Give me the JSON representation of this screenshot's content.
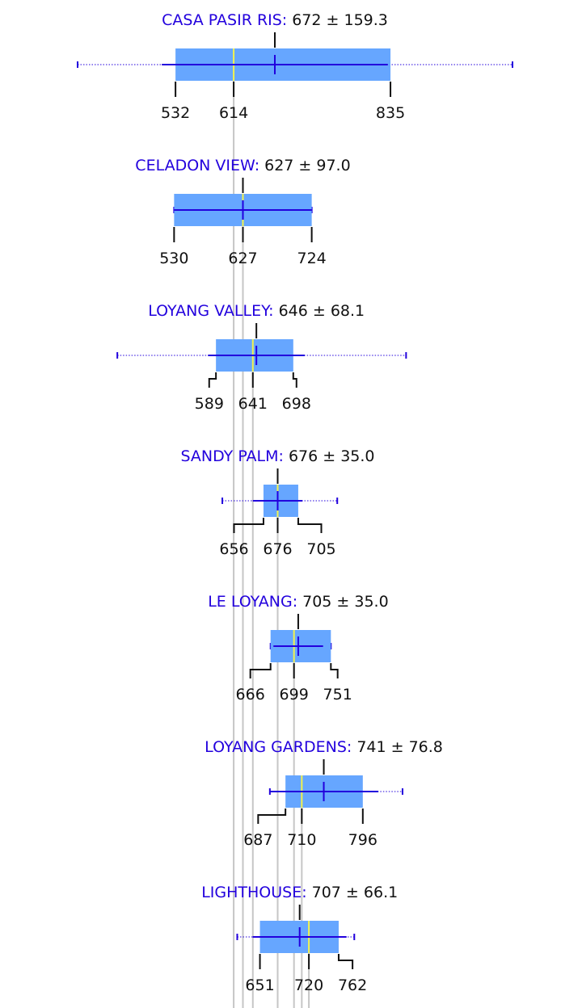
{
  "chart_data": {
    "type": "box",
    "pm_symbol": "±",
    "colors": {
      "box": "#66a6ff",
      "median": "#f2f24d",
      "whisker": "#2200dd",
      "name_text": "#2200dd",
      "text": "#111111",
      "guide": "#c6c6c6",
      "tick": "#111111"
    },
    "series": [
      {
        "name": "CASA PASIR RIS",
        "mean": 672,
        "sd": "159.3",
        "q1": 532,
        "median": 614,
        "q3": 835,
        "min": 394,
        "max": 1007
      },
      {
        "name": "CELADON VIEW",
        "mean": 627,
        "sd": "97.0",
        "q1": 530,
        "median": 627,
        "q3": 724,
        "min": 530,
        "max": 724
      },
      {
        "name": "LOYANG VALLEY",
        "mean": 646,
        "sd": "68.1",
        "q1": 589,
        "median": 641,
        "q3": 698,
        "min": 450,
        "max": 857
      },
      {
        "name": "SANDY PALM",
        "mean": 676,
        "sd": "35.0",
        "q1": 656,
        "median": 676,
        "q3": 705,
        "min": 598,
        "max": 760
      },
      {
        "name": "LE LOYANG",
        "mean": 705,
        "sd": "35.0",
        "q1": 666,
        "median": 699,
        "q3": 751,
        "min": 666,
        "max": 751
      },
      {
        "name": "LOYANG GARDENS",
        "mean": 741,
        "sd": "76.8",
        "q1": 687,
        "median": 710,
        "q3": 796,
        "min": 665,
        "max": 852
      },
      {
        "name": "LIGHTHOUSE",
        "mean": 707,
        "sd": "66.1",
        "q1": 651,
        "median": 720,
        "q3": 762,
        "min": 619,
        "max": 784
      }
    ]
  }
}
